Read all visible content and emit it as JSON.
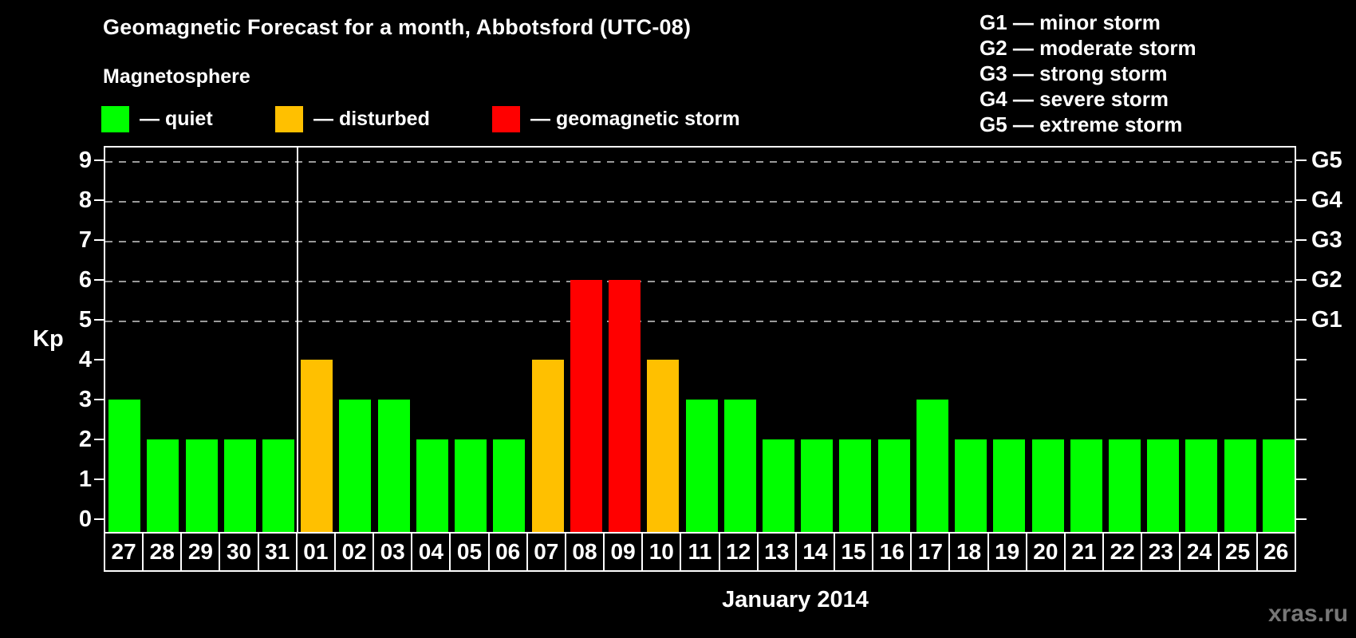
{
  "title": "Geomagnetic Forecast for a month, Abbotsford (UTC-08)",
  "subtitle": "Magnetosphere",
  "legend": {
    "items": [
      {
        "name": "quiet",
        "label": "— quiet",
        "color": "#00ff00"
      },
      {
        "name": "disturbed",
        "label": "— disturbed",
        "color": "#ffc000"
      },
      {
        "name": "storm",
        "label": "— geomagnetic storm",
        "color": "#ff0000"
      }
    ]
  },
  "g_scale_legend": {
    "lines": [
      "G1 — minor storm",
      "G2 — moderate storm",
      "G3 — strong storm",
      "G4 — severe storm",
      "G5 — extreme storm"
    ]
  },
  "chart_data": {
    "type": "bar",
    "title": "Geomagnetic Forecast for a month, Abbotsford (UTC-08)",
    "xlabel": "January 2014",
    "ylabel": "Kp",
    "ylim": [
      0,
      9
    ],
    "yticks": [
      0,
      1,
      2,
      3,
      4,
      5,
      6,
      7,
      8,
      9
    ],
    "gridline_levels": [
      5,
      6,
      7,
      8,
      9
    ],
    "grid": "dashed horizontal lines at storm levels only",
    "legend_position": "top-left",
    "right_axis_labels": [
      {
        "kp": 5,
        "label": "G1"
      },
      {
        "kp": 6,
        "label": "G2"
      },
      {
        "kp": 7,
        "label": "G3"
      },
      {
        "kp": 8,
        "label": "G4"
      },
      {
        "kp": 9,
        "label": "G5"
      }
    ],
    "categories": [
      "27",
      "28",
      "29",
      "30",
      "31",
      "01",
      "02",
      "03",
      "04",
      "05",
      "06",
      "07",
      "08",
      "09",
      "10",
      "11",
      "12",
      "13",
      "14",
      "15",
      "16",
      "17",
      "18",
      "19",
      "20",
      "21",
      "22",
      "23",
      "24",
      "25",
      "26"
    ],
    "values": [
      3,
      2,
      2,
      2,
      2,
      4,
      3,
      3,
      2,
      2,
      2,
      4,
      6,
      6,
      4,
      3,
      3,
      2,
      2,
      2,
      2,
      3,
      2,
      2,
      2,
      2,
      2,
      2,
      2,
      2,
      2
    ],
    "statuses": [
      "quiet",
      "quiet",
      "quiet",
      "quiet",
      "quiet",
      "disturbed",
      "quiet",
      "quiet",
      "quiet",
      "quiet",
      "quiet",
      "disturbed",
      "storm",
      "storm",
      "disturbed",
      "quiet",
      "quiet",
      "quiet",
      "quiet",
      "quiet",
      "quiet",
      "quiet",
      "quiet",
      "quiet",
      "quiet",
      "quiet",
      "quiet",
      "quiet",
      "quiet",
      "quiet",
      "quiet"
    ],
    "status_colors": {
      "quiet": "#00ff00",
      "disturbed": "#ffc000",
      "storm": "#ff0000"
    },
    "month_separator_after_category": "31"
  },
  "footer": {
    "xlabel": "January 2014",
    "watermark": "xras.ru"
  }
}
